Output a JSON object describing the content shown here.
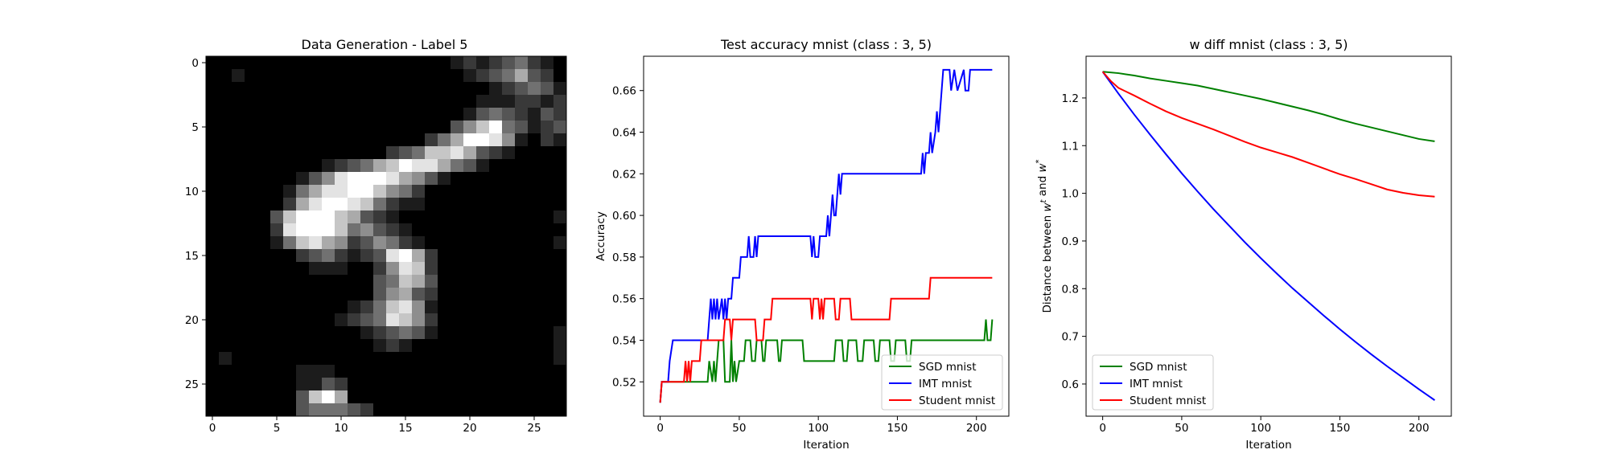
{
  "chart_data": [
    {
      "type": "heatmap",
      "title": "Data Generation - Label 5",
      "xlabel": "",
      "ylabel": "",
      "xticks": [
        "0",
        "5",
        "10",
        "15",
        "20",
        "25"
      ],
      "yticks": [
        "0",
        "5",
        "10",
        "15",
        "20",
        "25"
      ],
      "xlim": [
        -0.5,
        27.5
      ],
      "ylim": [
        27.5,
        -0.5
      ],
      "colormap": "gray",
      "pixels": [
        "0000000000000000000121234210",
        "0010000000000000000012346320",
        "0000000000000000000000123431",
        "0000000000000000000001112212",
        "0000000000000000000013432132",
        "0000000000000000000357943123",
        "0000000000000000024699851021",
        "0000000000000023477863210000",
        "0000000001234679886431000000",
        "0000000135899986531000000000",
        "0000001468899754200000000000",
        "0000002689987421100000000000",
        "0000037999763210000000000001",
        "0000028999745321000000000000",
        "0000014786523542100000000001",
        "0000000234212389620000000000",
        "0000000011100258720000000000",
        "0000000000000347630000000000",
        "0000000000000356320000000000",
        "0000000000012478510000000000",
        "0000000000123487520000000000",
        "0000000000001234310000000001",
        "0000000000000121000000000001",
        "0100000000000000000000000001",
        "0000000111000000000000000000",
        "0000000113200000000000000000",
        "0000000379600000000000000000",
        "0000000344432000000000000000"
      ]
    },
    {
      "type": "line",
      "title": "Test accuracy mnist (class : 3, 5)",
      "xlabel": "Iteration",
      "ylabel": "Accuracy",
      "xlim": [
        -10.5,
        220.5
      ],
      "ylim": [
        0.5035,
        0.6765
      ],
      "xticks": [
        0,
        50,
        100,
        150,
        200
      ],
      "xtick_labels": [
        "0",
        "50",
        "100",
        "150",
        "200"
      ],
      "yticks": [
        0.52,
        0.54,
        0.56,
        0.58,
        0.6,
        0.62,
        0.64,
        0.66
      ],
      "ytick_labels": [
        "0.52",
        "0.54",
        "0.56",
        "0.58",
        "0.60",
        "0.62",
        "0.64",
        "0.66"
      ],
      "legend": "lower-right",
      "series": [
        {
          "name": "SGD mnist",
          "color": "#008000",
          "points": [
            [
              0,
              0.51
            ],
            [
              1,
              0.52
            ],
            [
              30,
              0.52
            ],
            [
              31,
              0.53
            ],
            [
              33,
              0.52
            ],
            [
              34,
              0.53
            ],
            [
              35,
              0.52
            ],
            [
              36,
              0.53
            ],
            [
              37,
              0.54
            ],
            [
              40,
              0.54
            ],
            [
              41,
              0.52
            ],
            [
              44,
              0.52
            ],
            [
              45,
              0.54
            ],
            [
              46,
              0.52
            ],
            [
              47,
              0.53
            ],
            [
              48,
              0.52
            ],
            [
              50,
              0.53
            ],
            [
              53,
              0.53
            ],
            [
              54,
              0.54
            ],
            [
              57,
              0.54
            ],
            [
              58,
              0.53
            ],
            [
              60,
              0.53
            ],
            [
              61,
              0.54
            ],
            [
              64,
              0.54
            ],
            [
              65,
              0.53
            ],
            [
              66,
              0.53
            ],
            [
              67,
              0.54
            ],
            [
              74,
              0.54
            ],
            [
              75,
              0.53
            ],
            [
              76,
              0.53
            ],
            [
              77,
              0.54
            ],
            [
              90,
              0.54
            ],
            [
              91,
              0.53
            ],
            [
              110,
              0.53
            ],
            [
              111,
              0.54
            ],
            [
              115,
              0.54
            ],
            [
              116,
              0.53
            ],
            [
              118,
              0.53
            ],
            [
              119,
              0.54
            ],
            [
              124,
              0.54
            ],
            [
              125,
              0.53
            ],
            [
              128,
              0.53
            ],
            [
              129,
              0.54
            ],
            [
              135,
              0.54
            ],
            [
              136,
              0.53
            ],
            [
              138,
              0.53
            ],
            [
              139,
              0.54
            ],
            [
              145,
              0.54
            ],
            [
              146,
              0.53
            ],
            [
              148,
              0.53
            ],
            [
              149,
              0.54
            ],
            [
              155,
              0.54
            ],
            [
              156,
              0.53
            ],
            [
              158,
              0.53
            ],
            [
              159,
              0.54
            ],
            [
              205,
              0.54
            ],
            [
              206,
              0.55
            ],
            [
              207,
              0.54
            ],
            [
              209,
              0.54
            ],
            [
              210,
              0.55
            ]
          ]
        },
        {
          "name": "IMT mnist",
          "color": "#0000ff",
          "points": [
            [
              0,
              0.51
            ],
            [
              1,
              0.52
            ],
            [
              5,
              0.52
            ],
            [
              6,
              0.53
            ],
            [
              8,
              0.54
            ],
            [
              30,
              0.54
            ],
            [
              31,
              0.55
            ],
            [
              32,
              0.56
            ],
            [
              33,
              0.55
            ],
            [
              34,
              0.56
            ],
            [
              35,
              0.55
            ],
            [
              36,
              0.56
            ],
            [
              37,
              0.55
            ],
            [
              39,
              0.56
            ],
            [
              40,
              0.55
            ],
            [
              41,
              0.56
            ],
            [
              42,
              0.55
            ],
            [
              43,
              0.56
            ],
            [
              45,
              0.56
            ],
            [
              46,
              0.57
            ],
            [
              50,
              0.57
            ],
            [
              51,
              0.58
            ],
            [
              55,
              0.58
            ],
            [
              56,
              0.59
            ],
            [
              57,
              0.58
            ],
            [
              59,
              0.58
            ],
            [
              60,
              0.59
            ],
            [
              61,
              0.58
            ],
            [
              62,
              0.59
            ],
            [
              95,
              0.59
            ],
            [
              96,
              0.58
            ],
            [
              97,
              0.59
            ],
            [
              98,
              0.58
            ],
            [
              100,
              0.58
            ],
            [
              101,
              0.59
            ],
            [
              105,
              0.59
            ],
            [
              106,
              0.6
            ],
            [
              107,
              0.59
            ],
            [
              108,
              0.6
            ],
            [
              109,
              0.61
            ],
            [
              110,
              0.6
            ],
            [
              111,
              0.6
            ],
            [
              112,
              0.61
            ],
            [
              113,
              0.62
            ],
            [
              114,
              0.61
            ],
            [
              115,
              0.62
            ],
            [
              165,
              0.62
            ],
            [
              166,
              0.63
            ],
            [
              167,
              0.62
            ],
            [
              168,
              0.63
            ],
            [
              170,
              0.63
            ],
            [
              171,
              0.64
            ],
            [
              172,
              0.63
            ],
            [
              174,
              0.64
            ],
            [
              175,
              0.65
            ],
            [
              176,
              0.64
            ],
            [
              177,
              0.65
            ],
            [
              178,
              0.66
            ],
            [
              179,
              0.67
            ],
            [
              183,
              0.67
            ],
            [
              184,
              0.66
            ],
            [
              186,
              0.67
            ],
            [
              188,
              0.66
            ],
            [
              192,
              0.67
            ],
            [
              193,
              0.66
            ],
            [
              195,
              0.66
            ],
            [
              196,
              0.67
            ],
            [
              210,
              0.67
            ]
          ]
        },
        {
          "name": "Student mnist",
          "color": "#ff0000",
          "points": [
            [
              0,
              0.51
            ],
            [
              1,
              0.52
            ],
            [
              15,
              0.52
            ],
            [
              16,
              0.53
            ],
            [
              17,
              0.52
            ],
            [
              18,
              0.53
            ],
            [
              19,
              0.52
            ],
            [
              20,
              0.53
            ],
            [
              25,
              0.53
            ],
            [
              26,
              0.54
            ],
            [
              40,
              0.54
            ],
            [
              41,
              0.55
            ],
            [
              44,
              0.55
            ],
            [
              45,
              0.54
            ],
            [
              46,
              0.55
            ],
            [
              60,
              0.55
            ],
            [
              61,
              0.54
            ],
            [
              65,
              0.54
            ],
            [
              66,
              0.55
            ],
            [
              70,
              0.55
            ],
            [
              71,
              0.56
            ],
            [
              95,
              0.56
            ],
            [
              96,
              0.55
            ],
            [
              97,
              0.56
            ],
            [
              100,
              0.56
            ],
            [
              101,
              0.55
            ],
            [
              102,
              0.56
            ],
            [
              103,
              0.55
            ],
            [
              104,
              0.56
            ],
            [
              110,
              0.56
            ],
            [
              111,
              0.55
            ],
            [
              113,
              0.55
            ],
            [
              114,
              0.56
            ],
            [
              120,
              0.56
            ],
            [
              121,
              0.55
            ],
            [
              145,
              0.55
            ],
            [
              146,
              0.56
            ],
            [
              170,
              0.56
            ],
            [
              171,
              0.57
            ],
            [
              210,
              0.57
            ]
          ]
        }
      ]
    },
    {
      "type": "line",
      "title": "w diff mnist (class : 3, 5)",
      "xlabel": "Iteration",
      "ylabel": "Distance between w^t and w^*",
      "xlim": [
        -10.5,
        220.5
      ],
      "ylim": [
        0.5325,
        1.2875
      ],
      "xticks": [
        0,
        50,
        100,
        150,
        200
      ],
      "xtick_labels": [
        "0",
        "50",
        "100",
        "150",
        "200"
      ],
      "yticks": [
        0.6,
        0.7,
        0.8,
        0.9,
        1.0,
        1.1,
        1.2
      ],
      "ytick_labels": [
        "0.6",
        "0.7",
        "0.8",
        "0.9",
        "1.0",
        "1.1",
        "1.2"
      ],
      "legend": "lower-left",
      "series": [
        {
          "name": "SGD mnist",
          "color": "#008000",
          "points": [
            [
              0,
              1.255
            ],
            [
              10,
              1.252
            ],
            [
              20,
              1.247
            ],
            [
              30,
              1.241
            ],
            [
              40,
              1.236
            ],
            [
              50,
              1.231
            ],
            [
              60,
              1.226
            ],
            [
              70,
              1.219
            ],
            [
              80,
              1.212
            ],
            [
              90,
              1.205
            ],
            [
              100,
              1.198
            ],
            [
              110,
              1.19
            ],
            [
              120,
              1.182
            ],
            [
              130,
              1.174
            ],
            [
              140,
              1.165
            ],
            [
              150,
              1.155
            ],
            [
              160,
              1.146
            ],
            [
              170,
              1.138
            ],
            [
              180,
              1.13
            ],
            [
              190,
              1.122
            ],
            [
              200,
              1.114
            ],
            [
              210,
              1.109
            ]
          ]
        },
        {
          "name": "IMT mnist",
          "color": "#0000ff",
          "points": [
            [
              0,
              1.255
            ],
            [
              10,
              1.209
            ],
            [
              20,
              1.165
            ],
            [
              30,
              1.123
            ],
            [
              40,
              1.082
            ],
            [
              50,
              1.042
            ],
            [
              60,
              1.004
            ],
            [
              70,
              0.967
            ],
            [
              80,
              0.932
            ],
            [
              90,
              0.897
            ],
            [
              100,
              0.864
            ],
            [
              110,
              0.832
            ],
            [
              120,
              0.801
            ],
            [
              130,
              0.772
            ],
            [
              140,
              0.743
            ],
            [
              150,
              0.715
            ],
            [
              160,
              0.688
            ],
            [
              170,
              0.662
            ],
            [
              180,
              0.637
            ],
            [
              190,
              0.613
            ],
            [
              200,
              0.589
            ],
            [
              210,
              0.566
            ]
          ]
        },
        {
          "name": "Student mnist",
          "color": "#ff0000",
          "points": [
            [
              0,
              1.255
            ],
            [
              5,
              1.236
            ],
            [
              10,
              1.221
            ],
            [
              20,
              1.205
            ],
            [
              30,
              1.188
            ],
            [
              40,
              1.172
            ],
            [
              50,
              1.158
            ],
            [
              60,
              1.146
            ],
            [
              70,
              1.134
            ],
            [
              80,
              1.121
            ],
            [
              90,
              1.108
            ],
            [
              100,
              1.096
            ],
            [
              110,
              1.086
            ],
            [
              120,
              1.076
            ],
            [
              130,
              1.064
            ],
            [
              140,
              1.052
            ],
            [
              150,
              1.04
            ],
            [
              160,
              1.03
            ],
            [
              170,
              1.019
            ],
            [
              180,
              1.008
            ],
            [
              190,
              1.001
            ],
            [
              200,
              0.996
            ],
            [
              210,
              0.993
            ]
          ]
        }
      ]
    }
  ]
}
